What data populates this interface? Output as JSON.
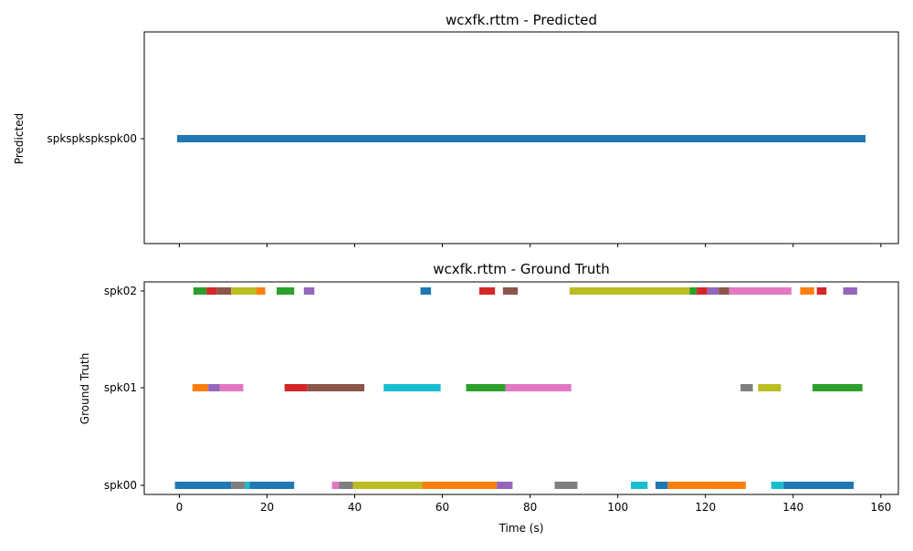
{
  "chart_data": [
    {
      "type": "timeline",
      "title": "wcxfk.rttm - Predicted",
      "ylabel": "Predicted",
      "xlabel": "",
      "categories": [
        "spkspkspkspk00"
      ],
      "segments": [
        {
          "speaker": "spkspkspkspk00",
          "start": -0.5,
          "end": 156.5,
          "color": "#1f77b4"
        }
      ]
    },
    {
      "type": "timeline",
      "title": "wcxfk.rttm - Ground Truth",
      "ylabel": "Ground Truth",
      "xlabel": "Time (s)",
      "categories": [
        "spk00",
        "spk01",
        "spk02"
      ],
      "xlim": [
        -8,
        164
      ],
      "xticks": [
        0,
        20,
        40,
        60,
        80,
        100,
        120,
        140,
        160
      ],
      "segments": [
        {
          "speaker": "spk02",
          "start": 3.2,
          "end": 6.2,
          "color": "#2ca02c"
        },
        {
          "speaker": "spk02",
          "start": 6.2,
          "end": 8.6,
          "color": "#d62728"
        },
        {
          "speaker": "spk02",
          "start": 8.6,
          "end": 11.8,
          "color": "#8c564b"
        },
        {
          "speaker": "spk02",
          "start": 11.8,
          "end": 17.6,
          "color": "#bcbd22"
        },
        {
          "speaker": "spk02",
          "start": 17.6,
          "end": 19.6,
          "color": "#ff7f0e"
        },
        {
          "speaker": "spk02",
          "start": 22.2,
          "end": 26.2,
          "color": "#2ca02c"
        },
        {
          "speaker": "spk02",
          "start": 28.4,
          "end": 30.8,
          "color": "#9467bd"
        },
        {
          "speaker": "spk02",
          "start": 55.0,
          "end": 57.4,
          "color": "#1f77b4"
        },
        {
          "speaker": "spk02",
          "start": 68.4,
          "end": 72.0,
          "color": "#d62728"
        },
        {
          "speaker": "spk02",
          "start": 73.8,
          "end": 77.2,
          "color": "#8c564b"
        },
        {
          "speaker": "spk02",
          "start": 89.0,
          "end": 116.4,
          "color": "#bcbd22"
        },
        {
          "speaker": "spk02",
          "start": 116.4,
          "end": 118.0,
          "color": "#2ca02c"
        },
        {
          "speaker": "spk02",
          "start": 118.0,
          "end": 120.4,
          "color": "#d62728"
        },
        {
          "speaker": "spk02",
          "start": 120.4,
          "end": 123.0,
          "color": "#9467bd"
        },
        {
          "speaker": "spk02",
          "start": 123.0,
          "end": 125.4,
          "color": "#8c564b"
        },
        {
          "speaker": "spk02",
          "start": 125.4,
          "end": 139.6,
          "color": "#e377c2"
        },
        {
          "speaker": "spk02",
          "start": 141.6,
          "end": 144.8,
          "color": "#ff7f0e"
        },
        {
          "speaker": "spk02",
          "start": 145.4,
          "end": 147.6,
          "color": "#d62728"
        },
        {
          "speaker": "spk02",
          "start": 151.4,
          "end": 154.6,
          "color": "#9467bd"
        },
        {
          "speaker": "spk01",
          "start": 3.0,
          "end": 6.6,
          "color": "#ff7f0e"
        },
        {
          "speaker": "spk01",
          "start": 6.6,
          "end": 9.2,
          "color": "#9467bd"
        },
        {
          "speaker": "spk01",
          "start": 9.2,
          "end": 14.6,
          "color": "#e377c2"
        },
        {
          "speaker": "spk01",
          "start": 24.0,
          "end": 29.2,
          "color": "#d62728"
        },
        {
          "speaker": "spk01",
          "start": 29.2,
          "end": 42.2,
          "color": "#8c564b"
        },
        {
          "speaker": "spk01",
          "start": 46.6,
          "end": 59.6,
          "color": "#17becf"
        },
        {
          "speaker": "spk01",
          "start": 65.4,
          "end": 74.4,
          "color": "#2ca02c"
        },
        {
          "speaker": "spk01",
          "start": 74.4,
          "end": 89.4,
          "color": "#e377c2"
        },
        {
          "speaker": "spk01",
          "start": 128.0,
          "end": 130.8,
          "color": "#7f7f7f"
        },
        {
          "speaker": "spk01",
          "start": 132.0,
          "end": 137.2,
          "color": "#bcbd22"
        },
        {
          "speaker": "spk01",
          "start": 144.4,
          "end": 155.8,
          "color": "#2ca02c"
        },
        {
          "speaker": "spk00",
          "start": -1.0,
          "end": 11.8,
          "color": "#1f77b4"
        },
        {
          "speaker": "spk00",
          "start": 11.8,
          "end": 15.0,
          "color": "#7f7f7f"
        },
        {
          "speaker": "spk00",
          "start": 15.0,
          "end": 16.0,
          "color": "#17becf"
        },
        {
          "speaker": "spk00",
          "start": 16.0,
          "end": 26.2,
          "color": "#1f77b4"
        },
        {
          "speaker": "spk00",
          "start": 34.8,
          "end": 36.4,
          "color": "#e377c2"
        },
        {
          "speaker": "spk00",
          "start": 36.4,
          "end": 39.6,
          "color": "#7f7f7f"
        },
        {
          "speaker": "spk00",
          "start": 39.6,
          "end": 55.4,
          "color": "#bcbd22"
        },
        {
          "speaker": "spk00",
          "start": 55.4,
          "end": 72.4,
          "color": "#ff7f0e"
        },
        {
          "speaker": "spk00",
          "start": 72.4,
          "end": 76.0,
          "color": "#9467bd"
        },
        {
          "speaker": "spk00",
          "start": 85.6,
          "end": 90.8,
          "color": "#7f7f7f"
        },
        {
          "speaker": "spk00",
          "start": 103.0,
          "end": 106.8,
          "color": "#17becf"
        },
        {
          "speaker": "spk00",
          "start": 108.6,
          "end": 111.4,
          "color": "#1f77b4"
        },
        {
          "speaker": "spk00",
          "start": 111.4,
          "end": 129.2,
          "color": "#ff7f0e"
        },
        {
          "speaker": "spk00",
          "start": 135.0,
          "end": 137.8,
          "color": "#17becf"
        },
        {
          "speaker": "spk00",
          "start": 137.8,
          "end": 153.8,
          "color": "#1f77b4"
        }
      ]
    }
  ]
}
